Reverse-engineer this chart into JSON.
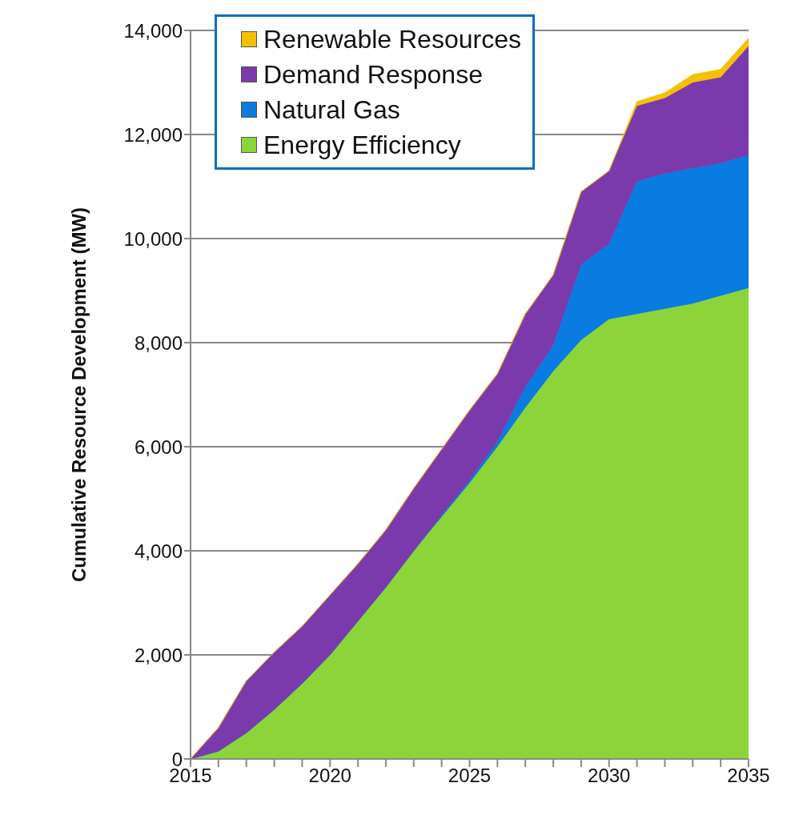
{
  "chart_data": {
    "type": "area",
    "stacked": true,
    "ylabel": "Cumulative Resource Development  (MW)",
    "x": [
      2015,
      2016,
      2017,
      2018,
      2019,
      2020,
      2021,
      2022,
      2023,
      2024,
      2025,
      2026,
      2027,
      2028,
      2029,
      2030,
      2031,
      2032,
      2033,
      2034,
      2035
    ],
    "series": [
      {
        "name": "Energy Efficiency",
        "color": "#8cd43a",
        "values": [
          0,
          150,
          500,
          950,
          1450,
          2000,
          2650,
          3300,
          4000,
          4650,
          5300,
          6000,
          6750,
          7450,
          8050,
          8450,
          8550,
          8650,
          8750,
          8900,
          9050
        ]
      },
      {
        "name": "Natural Gas",
        "color": "#0a7be0",
        "values": [
          0,
          0,
          0,
          0,
          0,
          0,
          0,
          0,
          0,
          30,
          50,
          100,
          400,
          500,
          1450,
          1450,
          2550,
          2600,
          2600,
          2550,
          2550
        ]
      },
      {
        "name": "Demand Response",
        "color": "#7a3aab",
        "values": [
          0,
          450,
          1000,
          1100,
          1100,
          1150,
          1100,
          1100,
          1200,
          1270,
          1350,
          1300,
          1400,
          1350,
          1400,
          1400,
          1450,
          1450,
          1650,
          1650,
          2100
        ]
      },
      {
        "name": "Renewable Resources",
        "color": "#f5c000",
        "values": [
          0,
          0,
          0,
          0,
          0,
          0,
          0,
          0,
          0,
          0,
          0,
          0,
          0,
          0,
          0,
          0,
          80,
          100,
          150,
          150,
          150
        ]
      }
    ],
    "xlim": [
      2015,
      2035
    ],
    "xticks": [
      2015,
      {
        "value": 2016,
        "label": null
      },
      {
        "value": 2017,
        "label": null
      },
      {
        "value": 2018,
        "label": null
      },
      {
        "value": 2019,
        "label": null
      },
      2020,
      {
        "value": 2021,
        "label": null
      },
      {
        "value": 2022,
        "label": null
      },
      {
        "value": 2023,
        "label": null
      },
      {
        "value": 2024,
        "label": null
      },
      2025,
      {
        "value": 2026,
        "label": null
      },
      {
        "value": 2027,
        "label": null
      },
      {
        "value": 2028,
        "label": null
      },
      {
        "value": 2029,
        "label": null
      },
      2030,
      {
        "value": 2031,
        "label": null
      },
      {
        "value": 2032,
        "label": null
      },
      {
        "value": 2033,
        "label": null
      },
      {
        "value": 2034,
        "label": null
      },
      2035
    ],
    "ylim": [
      0,
      14000
    ],
    "yticks": [
      0,
      {
        "value": 2000,
        "label": "2,000"
      },
      {
        "value": 4000,
        "label": "4,000"
      },
      {
        "value": 6000,
        "label": "6,000"
      },
      {
        "value": 8000,
        "label": "8,000"
      },
      {
        "value": 10000,
        "label": "10,000"
      },
      {
        "value": 12000,
        "label": "12,000"
      },
      {
        "value": 14000,
        "label": "14,000"
      }
    ],
    "grid": "y",
    "legend": "top left"
  }
}
